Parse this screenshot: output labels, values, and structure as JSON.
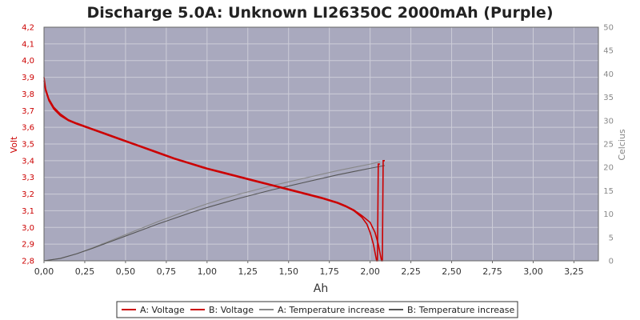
{
  "chart_data": {
    "type": "line",
    "title": "Discharge 5.0A: Unknown LI26350C 2000mAh (Purple)",
    "xlabel": "Ah",
    "ylabel_left": "Volt",
    "ylabel_right": "Celcius",
    "xlim": [
      0,
      3.4
    ],
    "ylim_left": [
      2.8,
      4.2
    ],
    "ylim_right": [
      0,
      50
    ],
    "x_ticks": [
      "0,00",
      "0,25",
      "0,50",
      "0,75",
      "1,00",
      "1,25",
      "1,50",
      "1,75",
      "2,00",
      "2,25",
      "2,50",
      "2,75",
      "3,00",
      "3,25"
    ],
    "y_left_ticks": [
      "2,8",
      "2,9",
      "3,0",
      "3,1",
      "3,2",
      "3,3",
      "3,4",
      "3,5",
      "3,6",
      "3,7",
      "3,8",
      "3,9",
      "4,0",
      "4,1",
      "4,2"
    ],
    "y_right_ticks": [
      "0",
      "5",
      "10",
      "15",
      "20",
      "25",
      "30",
      "35",
      "40",
      "45",
      "50"
    ],
    "grid": true,
    "plot_background": "#a9a9be",
    "grid_color": "#cdcdd8",
    "legend_position": "bottom",
    "series": [
      {
        "name": "A: Voltage",
        "axis": "left",
        "color": "#cc0000",
        "points": [
          [
            0.0,
            3.88
          ],
          [
            0.01,
            3.82
          ],
          [
            0.03,
            3.76
          ],
          [
            0.06,
            3.71
          ],
          [
            0.1,
            3.67
          ],
          [
            0.15,
            3.64
          ],
          [
            0.2,
            3.62
          ],
          [
            0.3,
            3.585
          ],
          [
            0.4,
            3.55
          ],
          [
            0.5,
            3.515
          ],
          [
            0.6,
            3.48
          ],
          [
            0.7,
            3.445
          ],
          [
            0.8,
            3.41
          ],
          [
            0.9,
            3.38
          ],
          [
            1.0,
            3.35
          ],
          [
            1.1,
            3.325
          ],
          [
            1.2,
            3.3
          ],
          [
            1.3,
            3.275
          ],
          [
            1.4,
            3.25
          ],
          [
            1.5,
            3.225
          ],
          [
            1.6,
            3.2
          ],
          [
            1.7,
            3.175
          ],
          [
            1.8,
            3.145
          ],
          [
            1.85,
            3.125
          ],
          [
            1.9,
            3.1
          ],
          [
            1.95,
            3.06
          ],
          [
            1.98,
            3.02
          ],
          [
            2.0,
            2.97
          ],
          [
            2.02,
            2.9
          ],
          [
            2.04,
            2.8
          ],
          [
            2.045,
            2.8
          ],
          [
            2.05,
            3.38
          ],
          [
            2.06,
            3.38
          ]
        ]
      },
      {
        "name": "B: Voltage",
        "axis": "left",
        "color": "#cc0000",
        "points": [
          [
            0.0,
            3.9
          ],
          [
            0.01,
            3.83
          ],
          [
            0.03,
            3.77
          ],
          [
            0.06,
            3.72
          ],
          [
            0.1,
            3.68
          ],
          [
            0.15,
            3.645
          ],
          [
            0.2,
            3.625
          ],
          [
            0.3,
            3.59
          ],
          [
            0.4,
            3.555
          ],
          [
            0.5,
            3.52
          ],
          [
            0.6,
            3.485
          ],
          [
            0.7,
            3.45
          ],
          [
            0.8,
            3.415
          ],
          [
            0.9,
            3.385
          ],
          [
            1.0,
            3.355
          ],
          [
            1.1,
            3.33
          ],
          [
            1.2,
            3.305
          ],
          [
            1.3,
            3.28
          ],
          [
            1.4,
            3.255
          ],
          [
            1.5,
            3.23
          ],
          [
            1.6,
            3.205
          ],
          [
            1.7,
            3.18
          ],
          [
            1.8,
            3.15
          ],
          [
            1.85,
            3.13
          ],
          [
            1.9,
            3.105
          ],
          [
            1.95,
            3.07
          ],
          [
            2.0,
            3.03
          ],
          [
            2.03,
            2.97
          ],
          [
            2.05,
            2.9
          ],
          [
            2.07,
            2.8
          ],
          [
            2.075,
            2.8
          ],
          [
            2.08,
            3.4
          ],
          [
            2.09,
            3.4
          ]
        ]
      },
      {
        "name": "A: Temperature increase",
        "axis": "right",
        "color": "#888888",
        "points": [
          [
            0.0,
            0.0
          ],
          [
            0.1,
            0.5
          ],
          [
            0.2,
            1.5
          ],
          [
            0.3,
            2.8
          ],
          [
            0.4,
            4.2
          ],
          [
            0.5,
            5.6
          ],
          [
            0.6,
            7.0
          ],
          [
            0.7,
            8.4
          ],
          [
            0.8,
            9.7
          ],
          [
            0.9,
            11.0
          ],
          [
            1.0,
            12.2
          ],
          [
            1.1,
            13.3
          ],
          [
            1.2,
            14.3
          ],
          [
            1.3,
            15.2
          ],
          [
            1.4,
            16.1
          ],
          [
            1.5,
            16.9
          ],
          [
            1.6,
            17.7
          ],
          [
            1.7,
            18.5
          ],
          [
            1.8,
            19.3
          ],
          [
            1.9,
            20.0
          ],
          [
            2.0,
            20.7
          ],
          [
            2.06,
            21.2
          ]
        ]
      },
      {
        "name": "B: Temperature increase",
        "axis": "right",
        "color": "#555555",
        "points": [
          [
            0.0,
            0.0
          ],
          [
            0.1,
            0.5
          ],
          [
            0.2,
            1.5
          ],
          [
            0.3,
            2.7
          ],
          [
            0.4,
            4.0
          ],
          [
            0.5,
            5.3
          ],
          [
            0.6,
            6.6
          ],
          [
            0.7,
            7.9
          ],
          [
            0.8,
            9.1
          ],
          [
            0.9,
            10.3
          ],
          [
            1.0,
            11.4
          ],
          [
            1.1,
            12.4
          ],
          [
            1.2,
            13.4
          ],
          [
            1.3,
            14.3
          ],
          [
            1.4,
            15.2
          ],
          [
            1.5,
            16.0
          ],
          [
            1.6,
            16.8
          ],
          [
            1.7,
            17.6
          ],
          [
            1.8,
            18.4
          ],
          [
            1.9,
            19.1
          ],
          [
            2.0,
            19.8
          ],
          [
            2.09,
            20.4
          ]
        ]
      }
    ]
  }
}
